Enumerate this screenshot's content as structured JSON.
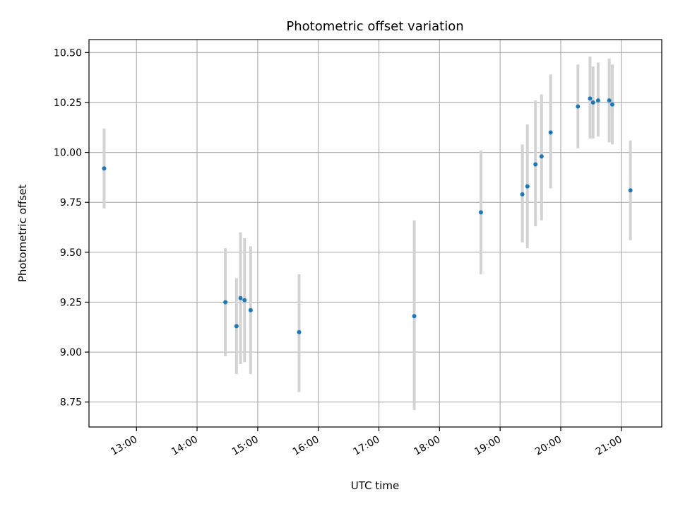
{
  "chart_data": {
    "type": "scatter",
    "title": "Photometric offset variation",
    "xlabel": "UTC time",
    "ylabel": "Photometric offset",
    "xlim": [
      "12:13",
      "21:40"
    ],
    "ylim": [
      8.625,
      10.565
    ],
    "x_ticks": [
      "13:00",
      "14:00",
      "15:00",
      "16:00",
      "17:00",
      "18:00",
      "19:00",
      "20:00",
      "21:00"
    ],
    "y_ticks": [
      8.75,
      9.0,
      9.25,
      9.5,
      9.75,
      10.0,
      10.25,
      10.5
    ],
    "y_tick_labels": [
      "8.75",
      "9.00",
      "9.25",
      "9.50",
      "9.75",
      "10.00",
      "10.25",
      "10.50"
    ],
    "grid": true,
    "point_color": "#1f77b4",
    "errorbar_color": "#d3d3d3",
    "points": [
      {
        "x": "12:28",
        "y": 9.92,
        "low": 9.72,
        "high": 10.12
      },
      {
        "x": "14:28",
        "y": 9.25,
        "low": 8.98,
        "high": 9.52
      },
      {
        "x": "14:39",
        "y": 9.13,
        "low": 8.89,
        "high": 9.37
      },
      {
        "x": "14:43",
        "y": 9.27,
        "low": 8.94,
        "high": 9.6
      },
      {
        "x": "14:47",
        "y": 9.26,
        "low": 8.95,
        "high": 9.57
      },
      {
        "x": "14:53",
        "y": 9.21,
        "low": 8.89,
        "high": 9.53
      },
      {
        "x": "15:41",
        "y": 9.1,
        "low": 8.8,
        "high": 9.39
      },
      {
        "x": "17:35",
        "y": 9.18,
        "low": 8.71,
        "high": 9.66
      },
      {
        "x": "18:41",
        "y": 9.7,
        "low": 9.39,
        "high": 10.01
      },
      {
        "x": "19:22",
        "y": 9.79,
        "low": 9.55,
        "high": 10.04
      },
      {
        "x": "19:27",
        "y": 9.83,
        "low": 9.52,
        "high": 10.14
      },
      {
        "x": "19:35",
        "y": 9.94,
        "low": 9.63,
        "high": 10.26
      },
      {
        "x": "19:41",
        "y": 9.98,
        "low": 9.66,
        "high": 10.29
      },
      {
        "x": "19:50",
        "y": 10.1,
        "low": 9.82,
        "high": 10.39
      },
      {
        "x": "20:17",
        "y": 10.23,
        "low": 10.02,
        "high": 10.44
      },
      {
        "x": "20:29",
        "y": 10.27,
        "low": 10.07,
        "high": 10.48
      },
      {
        "x": "20:32",
        "y": 10.25,
        "low": 10.07,
        "high": 10.43
      },
      {
        "x": "20:37",
        "y": 10.26,
        "low": 10.08,
        "high": 10.45
      },
      {
        "x": "20:48",
        "y": 10.26,
        "low": 10.05,
        "high": 10.47
      },
      {
        "x": "20:51",
        "y": 10.24,
        "low": 10.04,
        "high": 10.44
      },
      {
        "x": "21:09",
        "y": 9.81,
        "low": 9.56,
        "high": 10.06
      }
    ]
  }
}
